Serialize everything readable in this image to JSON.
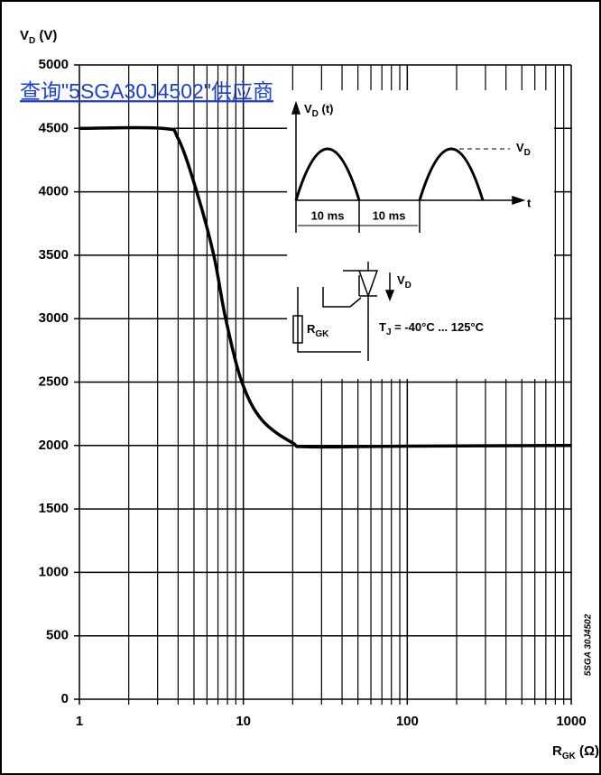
{
  "chart_data": {
    "type": "line",
    "y_label": [
      "V",
      "D",
      " (V)"
    ],
    "x_label": [
      "R",
      "GK",
      " (Ω)"
    ],
    "link_text": "查询\"5SGA30J4502\"供应商",
    "side_label": "5SGA 30J4502",
    "log_x": true,
    "grid": true,
    "xlim": [
      1,
      1000
    ],
    "ylim": [
      0,
      5000
    ],
    "xticks": [
      1,
      10,
      100,
      1000
    ],
    "xminor_ticks": [
      2,
      3,
      4,
      5,
      6,
      7,
      8,
      9,
      20,
      30,
      40,
      50,
      60,
      70,
      80,
      90,
      200,
      300,
      400,
      500,
      600,
      700,
      800,
      900
    ],
    "yticks": [
      0,
      500,
      1000,
      1500,
      2000,
      2500,
      3000,
      3500,
      4000,
      4500,
      5000
    ],
    "series": [
      {
        "name": "VD",
        "color": "#000000",
        "x": [
          1,
          3.2,
          4,
          5.2,
          6.6,
          7.8,
          9.8,
          13,
          20,
          25,
          100,
          1000
        ],
        "values": [
          4500,
          4500,
          4420,
          4000,
          3500,
          3000,
          2500,
          2200,
          2020,
          1990,
          1995,
          2000
        ]
      }
    ],
    "inset": {
      "vd_t": [
        "V",
        "D",
        " (t)"
      ],
      "vd_peak": [
        "V",
        "D"
      ],
      "t": "t",
      "ms1": "10 ms",
      "ms2": "10 ms",
      "vd_circuit": [
        "V",
        "D"
      ],
      "rgk": [
        "R",
        "GK"
      ],
      "tj": [
        "T",
        "J",
        " =  -40°C ... 125°C"
      ]
    }
  }
}
